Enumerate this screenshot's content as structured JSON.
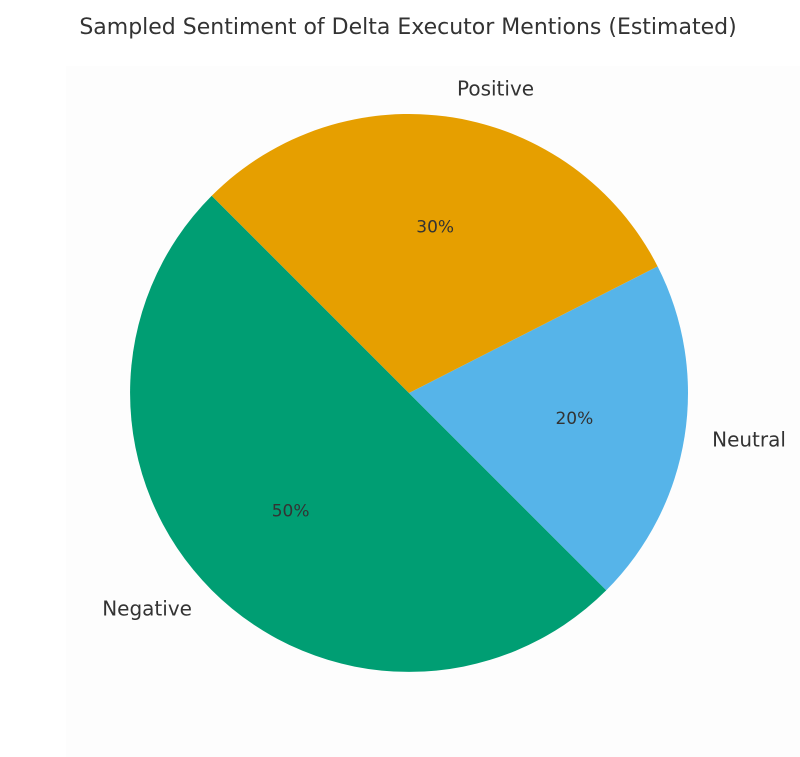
{
  "chart_data": {
    "type": "pie",
    "title": "Sampled Sentiment of Delta Executor Mentions (Estimated)",
    "slices": [
      {
        "label": "Negative",
        "value": 50,
        "value_label": "50%",
        "color": "#009e73"
      },
      {
        "label": "Neutral",
        "value": 20,
        "value_label": "20%",
        "color": "#56b4e9"
      },
      {
        "label": "Positive",
        "value": 30,
        "value_label": "30%",
        "color": "#e69f00"
      }
    ]
  }
}
